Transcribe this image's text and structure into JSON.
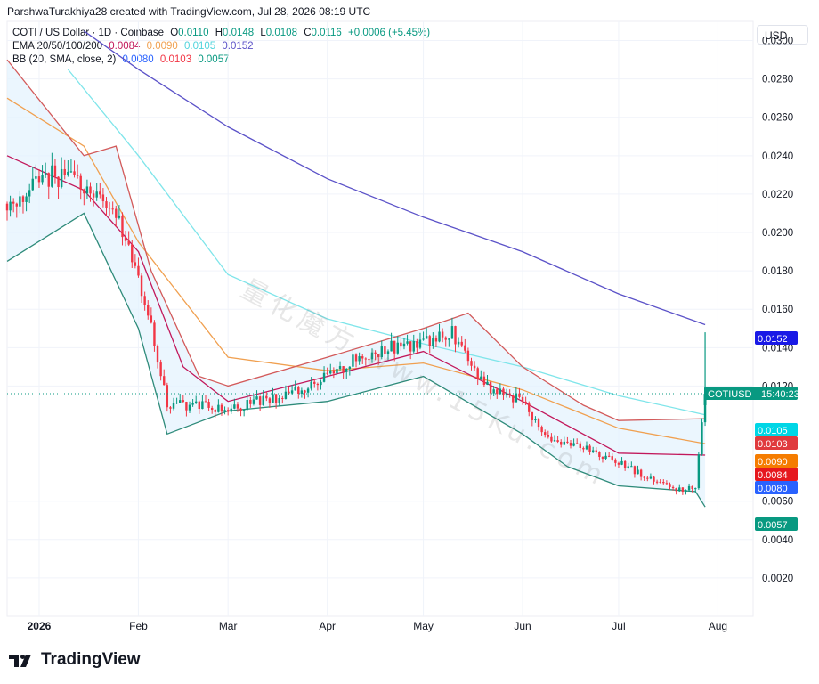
{
  "header": {
    "attribution": "ParshwaTurakhiya28 created with TradingView.com, Jul 28, 2026 08:19 UTC",
    "currency_button": "USD"
  },
  "legend": {
    "symbol_line": {
      "name": "COTI / US Dollar · 1D · Coinbase",
      "o_label": "O",
      "o": "0.0110",
      "h_label": "H",
      "h": "0.0148",
      "l_label": "L",
      "l": "0.0108",
      "c_label": "C",
      "c": "0.0116",
      "change": "+0.0006 (+5.45%)"
    },
    "ema_line": {
      "name": "EMA 20/50/100/200",
      "v1": "0.0084",
      "v2": "0.0090",
      "v3": "0.0105",
      "v4": "0.0152"
    },
    "bb_line": {
      "name": "BB (20, SMA, close, 2)",
      "v1": "0.0080",
      "v2": "0.0103",
      "v3": "0.0057"
    }
  },
  "price_tags": {
    "ema200": {
      "text": "0.0152",
      "color": "#1919e6"
    },
    "symbol": {
      "label": "COTIUSD",
      "time": "15:40:23",
      "color": "#089981"
    },
    "ema100": {
      "text": "0.0105",
      "color": "#00d6e6"
    },
    "bb_upper": {
      "text": "0.0103",
      "color": "#e03a3e"
    },
    "ema50": {
      "text": "0.0090",
      "color": "#f57c00"
    },
    "ema20": {
      "text": "0.0084",
      "color": "#e6181e"
    },
    "bb_basis": {
      "text": "0.0080",
      "color": "#2962ff"
    },
    "bb_lower": {
      "text": "0.0057",
      "color": "#089981"
    }
  },
  "watermark": "量化魔方 www.15Ku.com",
  "brand": {
    "name": "TradingView"
  },
  "colors": {
    "up": "#089981",
    "down": "#f23645",
    "ema20": "#c2185b",
    "ema50": "#f0a050",
    "ema100": "#7fe5ea",
    "ema200": "#5b52c8",
    "bb": "#d35a5a",
    "bb_fill": "#e3f2fd",
    "basis": "#4a58b0"
  },
  "chart_data": {
    "type": "line",
    "title": "COTI / US Dollar · 1D · Coinbase",
    "y_axis_ticks": [
      "0.0300",
      "0.0280",
      "0.0260",
      "0.0240",
      "0.0220",
      "0.0200",
      "0.0180",
      "0.0160",
      "0.0140",
      "0.0120",
      "0.0060",
      "0.0040",
      "0.0020"
    ],
    "x_axis_ticks": [
      "2026",
      "Feb",
      "Mar",
      "Apr",
      "May",
      "Jun",
      "Jul",
      "Aug"
    ],
    "ylim": [
      0.0,
      0.031
    ],
    "last_price": 0.0116,
    "series": [
      {
        "name": "COTI / US Dollar",
        "x": [
          "2025-12-22",
          "2026-01-05",
          "2026-01-15",
          "2026-01-25",
          "2026-02-01",
          "2026-02-05",
          "2026-02-10",
          "2026-02-20",
          "2026-03-01",
          "2026-03-10",
          "2026-03-20",
          "2026-04-01",
          "2026-04-10",
          "2026-04-20",
          "2026-05-01",
          "2026-05-10",
          "2026-05-20",
          "2026-06-01",
          "2026-06-10",
          "2026-06-20",
          "2026-07-01",
          "2026-07-10",
          "2026-07-20",
          "2026-07-25",
          "2026-07-28"
        ],
        "values": [
          0.0215,
          0.023,
          0.0225,
          0.021,
          0.0175,
          0.015,
          0.011,
          0.011,
          0.0107,
          0.0112,
          0.0115,
          0.0125,
          0.0135,
          0.014,
          0.0142,
          0.0148,
          0.012,
          0.0112,
          0.009,
          0.0088,
          0.008,
          0.0072,
          0.0066,
          0.0068,
          0.0116
        ]
      },
      {
        "name": "EMA 200",
        "x": [
          "2026-01-15",
          "2026-02-01",
          "2026-03-01",
          "2026-04-01",
          "2026-05-01",
          "2026-06-01",
          "2026-07-01",
          "2026-07-28"
        ],
        "values": [
          0.0305,
          0.0285,
          0.0255,
          0.0228,
          0.0208,
          0.019,
          0.0168,
          0.0152
        ]
      },
      {
        "name": "EMA 100",
        "x": [
          "2026-01-10",
          "2026-02-01",
          "2026-03-01",
          "2026-04-01",
          "2026-05-01",
          "2026-06-01",
          "2026-07-01",
          "2026-07-28"
        ],
        "values": [
          0.0285,
          0.024,
          0.0178,
          0.0155,
          0.0142,
          0.013,
          0.0115,
          0.0105
        ]
      },
      {
        "name": "EMA 50",
        "x": [
          "2025-12-22",
          "2026-01-15",
          "2026-02-01",
          "2026-03-01",
          "2026-04-01",
          "2026-05-01",
          "2026-06-01",
          "2026-07-01",
          "2026-07-28"
        ],
        "values": [
          0.027,
          0.0245,
          0.0195,
          0.0135,
          0.0128,
          0.0132,
          0.0118,
          0.0098,
          0.009
        ]
      },
      {
        "name": "EMA 20",
        "x": [
          "2025-12-22",
          "2026-01-15",
          "2026-02-01",
          "2026-02-15",
          "2026-03-01",
          "2026-04-01",
          "2026-05-01",
          "2026-06-01",
          "2026-07-01",
          "2026-07-28"
        ],
        "values": [
          0.024,
          0.0222,
          0.019,
          0.013,
          0.0112,
          0.0125,
          0.0138,
          0.0112,
          0.0085,
          0.0084
        ]
      },
      {
        "name": "BB upper",
        "x": [
          "2025-12-22",
          "2026-01-15",
          "2026-01-25",
          "2026-02-05",
          "2026-02-20",
          "2026-03-01",
          "2026-04-01",
          "2026-05-01",
          "2026-05-15",
          "2026-06-01",
          "2026-06-20",
          "2026-07-01",
          "2026-07-28"
        ],
        "values": [
          0.029,
          0.024,
          0.0245,
          0.018,
          0.0125,
          0.012,
          0.0135,
          0.015,
          0.0158,
          0.013,
          0.011,
          0.0102,
          0.0103
        ]
      },
      {
        "name": "BB lower",
        "x": [
          "2025-12-22",
          "2026-01-15",
          "2026-02-01",
          "2026-02-10",
          "2026-03-01",
          "2026-04-01",
          "2026-05-01",
          "2026-06-01",
          "2026-06-15",
          "2026-07-01",
          "2026-07-25",
          "2026-07-28"
        ],
        "values": [
          0.0185,
          0.021,
          0.015,
          0.0095,
          0.0107,
          0.0112,
          0.0125,
          0.0095,
          0.0078,
          0.0068,
          0.0065,
          0.0057
        ]
      }
    ]
  }
}
